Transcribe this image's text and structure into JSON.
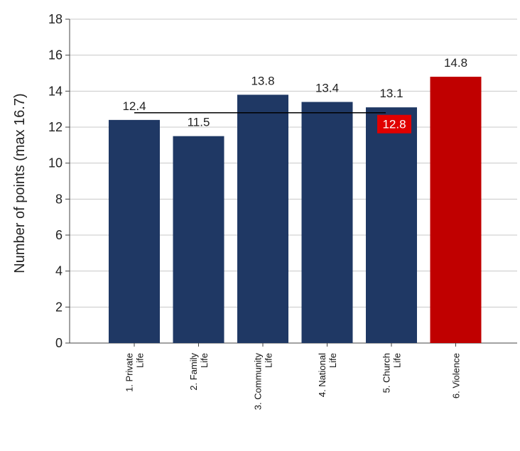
{
  "chart_data": {
    "type": "bar",
    "ylabel": "Number of points (max 16.7)",
    "xlabel": "",
    "title": "",
    "ylim": [
      0,
      18
    ],
    "yticks": [
      0,
      2,
      4,
      6,
      8,
      10,
      12,
      14,
      16,
      18
    ],
    "grid": true,
    "categories": [
      [
        "1. Private",
        "Life"
      ],
      [
        "2. Family",
        "Life"
      ],
      [
        "3. Community",
        "Life"
      ],
      [
        "4. National",
        "Life"
      ],
      [
        "5. Church",
        "Life"
      ],
      [
        "6. Violence"
      ]
    ],
    "values": [
      12.4,
      11.5,
      13.8,
      13.4,
      13.1,
      14.8
    ],
    "value_labels": [
      "12.4",
      "11.5",
      "13.8",
      "13.4",
      "13.1",
      "14.8"
    ],
    "bar_colors": [
      "#1f3864",
      "#1f3864",
      "#1f3864",
      "#1f3864",
      "#1f3864",
      "#c00000"
    ],
    "average": {
      "value": 12.8,
      "label": "12.8",
      "line_color": "#000000",
      "label_background": "#e00000"
    }
  }
}
